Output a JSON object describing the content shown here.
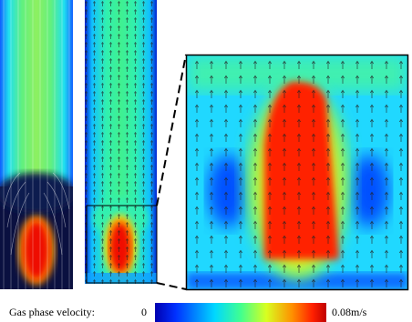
{
  "colorbar": {
    "title": "Gas phase velocity:",
    "min_label": "0",
    "max_label": "0.08m/s"
  }
}
